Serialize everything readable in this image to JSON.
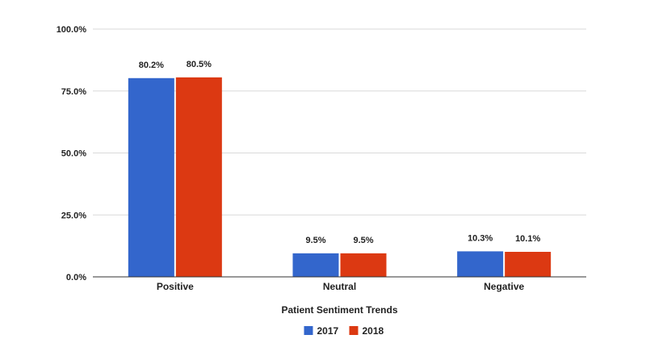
{
  "chart_data": {
    "type": "bar",
    "categories": [
      "Positive",
      "Neutral",
      "Negative"
    ],
    "series": [
      {
        "name": "2017",
        "values": [
          80.2,
          9.5,
          10.3
        ],
        "labels": [
          "80.2%",
          "9.5%",
          "10.3%"
        ],
        "color": "#3366cc"
      },
      {
        "name": "2018",
        "values": [
          80.5,
          9.5,
          10.1
        ],
        "labels": [
          "80.5%",
          "9.5%",
          "10.1%"
        ],
        "color": "#dc3912"
      }
    ],
    "title": "",
    "xlabel": "Patient Sentiment Trends",
    "ylabel": "",
    "ylim": [
      0,
      100
    ],
    "yticks": [
      0,
      25,
      50,
      75,
      100
    ],
    "ytick_labels": [
      "0.0%",
      "25.0%",
      "50.0%",
      "75.0%",
      "100.0%"
    ],
    "grid": true,
    "legend_position": "bottom"
  }
}
